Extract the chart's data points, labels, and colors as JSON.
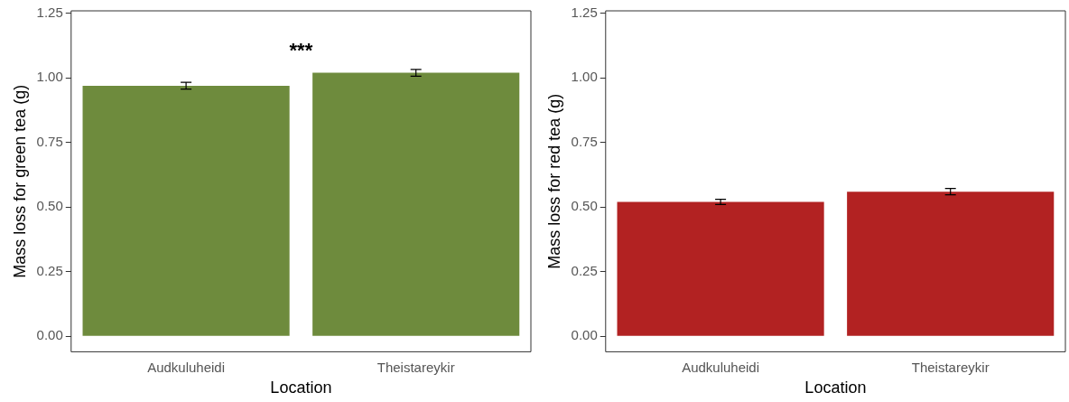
{
  "chart_data": [
    {
      "type": "bar",
      "xlabel": "Location",
      "ylabel": "Mass loss for green tea (g)",
      "categories": [
        "Audkuluheidi",
        "Theistareykir"
      ],
      "values": [
        0.97,
        1.02
      ],
      "errors": [
        0.013,
        0.013
      ],
      "color": "#6e8b3d",
      "ylim": [
        -0.06,
        1.26
      ],
      "yticks": [
        {
          "value": 0,
          "label": "0.00"
        },
        {
          "value": 0.25,
          "label": "0.25"
        },
        {
          "value": 0.5,
          "label": "0.50"
        },
        {
          "value": 0.75,
          "label": "0.75"
        },
        {
          "value": 1,
          "label": "1.00"
        },
        {
          "value": 1.25,
          "label": "1.25"
        }
      ],
      "grid": false,
      "legend": false,
      "annotations": [
        "***"
      ]
    },
    {
      "type": "bar",
      "xlabel": "Location",
      "ylabel": "Mass loss for red tea (g)",
      "categories": [
        "Audkuluheidi",
        "Theistareykir"
      ],
      "values": [
        0.52,
        0.56
      ],
      "errors": [
        0.01,
        0.012
      ],
      "color": "#b22222",
      "ylim": [
        -0.06,
        1.26
      ],
      "yticks": [
        {
          "value": 0,
          "label": "0.00"
        },
        {
          "value": 0.25,
          "label": "0.25"
        },
        {
          "value": 0.5,
          "label": "0.50"
        },
        {
          "value": 0.75,
          "label": "0.75"
        },
        {
          "value": 1,
          "label": "1.00"
        },
        {
          "value": 1.25,
          "label": "1.25"
        }
      ],
      "grid": false,
      "legend": false
    }
  ]
}
